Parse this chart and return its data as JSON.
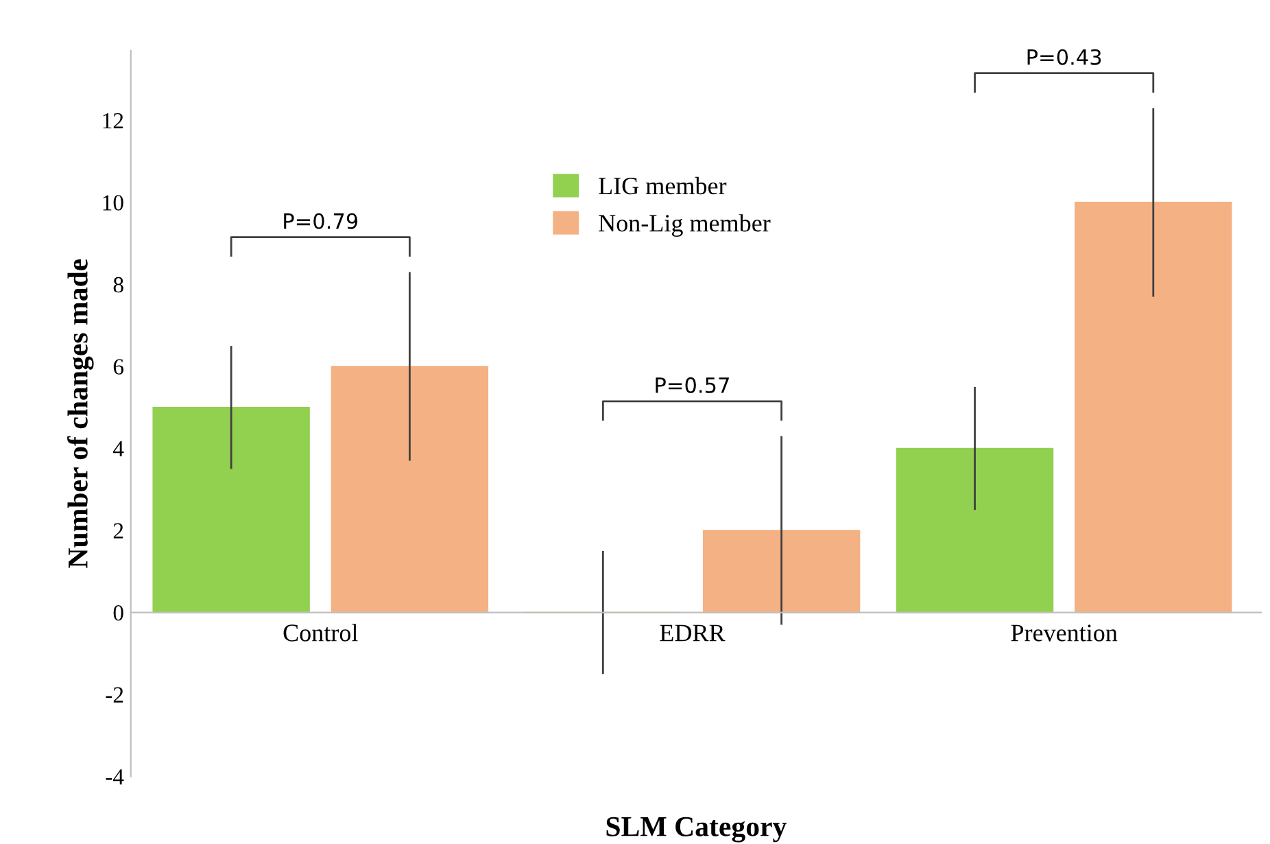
{
  "chart_data": {
    "type": "bar",
    "xlabel": "SLM Category",
    "ylabel": "Number of changes made",
    "categories": [
      "Control",
      "EDRR",
      "Prevention"
    ],
    "series": [
      {
        "name": "LIG member",
        "color": "#92d050",
        "values": [
          5,
          0,
          4
        ],
        "errors": [
          1.5,
          1.5,
          1.5
        ]
      },
      {
        "name": "Non-Lig member",
        "color": "#f4b183",
        "values": [
          6,
          2,
          10
        ],
        "errors": [
          2.3,
          2.3,
          2.3
        ]
      }
    ],
    "ylim": [
      -4,
      13.7
    ],
    "yticks": [
      -4,
      -2,
      0,
      2,
      4,
      6,
      8,
      10,
      12
    ],
    "grid": false,
    "legend": "top",
    "annotations": [
      "P=0.79",
      "P=0.57",
      "P=0.43"
    ]
  }
}
